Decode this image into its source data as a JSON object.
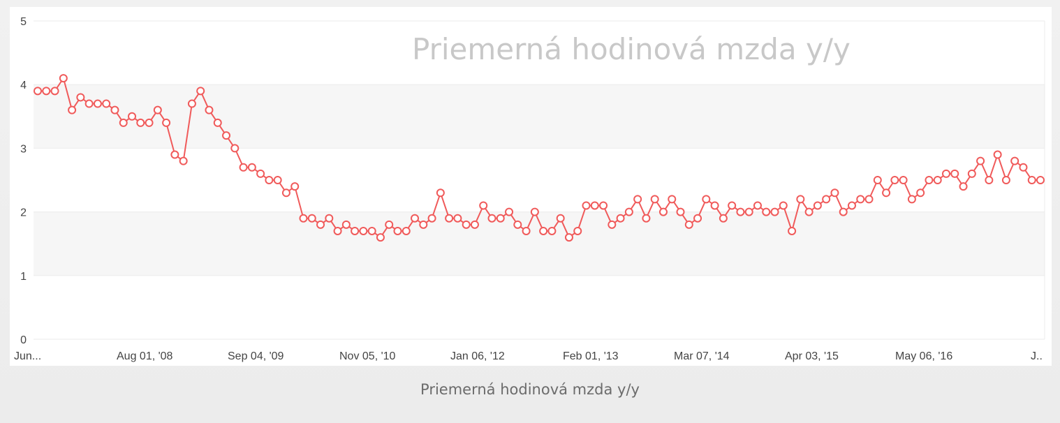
{
  "caption": "Priemerná hodinová mzda y/y",
  "chart_data": {
    "type": "line",
    "title": "Priemerná hodinová mzda y/y",
    "xlabel": "",
    "ylabel": "",
    "ylim": [
      0,
      5
    ],
    "y_ticks": [
      0,
      1,
      2,
      3,
      4,
      5
    ],
    "x_tick_labels": [
      "Jun...",
      "Aug 01, '08",
      "Sep 04, '09",
      "Nov 05, '10",
      "Jan 06, '12",
      "Feb 01, '13",
      "Mar 07, '14",
      "Apr 03, '15",
      "May 06, '16",
      "J.."
    ],
    "grid": true,
    "banded_background": true,
    "series_color": "#f05a5a",
    "marker": "hollow-circle",
    "series": [
      {
        "values": [
          3.9,
          3.9,
          3.9,
          4.1,
          3.6,
          3.8,
          3.7,
          3.7,
          3.7,
          3.6,
          3.4,
          3.5,
          3.4,
          3.4,
          3.6,
          3.4,
          2.9,
          2.8,
          3.7,
          3.9,
          3.6,
          3.4,
          3.2,
          3.0,
          2.7,
          2.7,
          2.6,
          2.5,
          2.5,
          2.3,
          2.4,
          1.9,
          1.9,
          1.8,
          1.9,
          1.7,
          1.8,
          1.7,
          1.7,
          1.7,
          1.6,
          1.8,
          1.7,
          1.7,
          1.9,
          1.8,
          1.9,
          2.3,
          1.9,
          1.9,
          1.8,
          1.8,
          2.1,
          1.9,
          1.9,
          2.0,
          1.8,
          1.7,
          2.0,
          1.7,
          1.7,
          1.9,
          1.6,
          1.7,
          2.1,
          2.1,
          2.1,
          1.8,
          1.9,
          2.0,
          2.2,
          1.9,
          2.2,
          2.0,
          2.2,
          2.0,
          1.8,
          1.9,
          2.2,
          2.1,
          1.9,
          2.1,
          2.0,
          2.0,
          2.1,
          2.0,
          2.0,
          2.1,
          1.7,
          2.2,
          2.0,
          2.1,
          2.2,
          2.3,
          2.0,
          2.1,
          2.2,
          2.2,
          2.5,
          2.3,
          2.5,
          2.5,
          2.2,
          2.3,
          2.5,
          2.5,
          2.6,
          2.6,
          2.4,
          2.6,
          2.8,
          2.5,
          2.9,
          2.5,
          2.8,
          2.7,
          2.5,
          2.5
        ]
      }
    ]
  }
}
